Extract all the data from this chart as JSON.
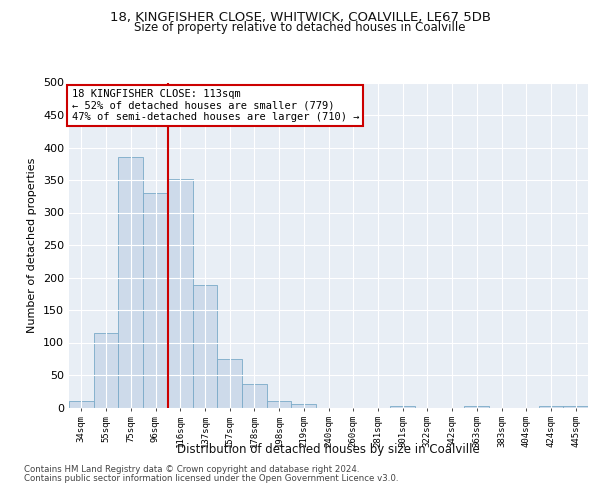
{
  "title1": "18, KINGFISHER CLOSE, WHITWICK, COALVILLE, LE67 5DB",
  "title2": "Size of property relative to detached houses in Coalville",
  "xlabel": "Distribution of detached houses by size in Coalville",
  "ylabel": "Number of detached properties",
  "categories": [
    "34sqm",
    "55sqm",
    "75sqm",
    "96sqm",
    "116sqm",
    "137sqm",
    "157sqm",
    "178sqm",
    "198sqm",
    "219sqm",
    "240sqm",
    "260sqm",
    "281sqm",
    "301sqm",
    "322sqm",
    "342sqm",
    "363sqm",
    "383sqm",
    "404sqm",
    "424sqm",
    "445sqm"
  ],
  "values": [
    10,
    115,
    385,
    330,
    352,
    188,
    74,
    36,
    10,
    6,
    0,
    0,
    0,
    2,
    0,
    0,
    3,
    0,
    0,
    2,
    3
  ],
  "bar_color": "#cddaea",
  "bar_edge_color": "#7aaac8",
  "highlight_line_color": "#cc0000",
  "annotation_text": "18 KINGFISHER CLOSE: 113sqm\n← 52% of detached houses are smaller (779)\n47% of semi-detached houses are larger (710) →",
  "annotation_box_color": "#ffffff",
  "annotation_box_edge": "#cc0000",
  "footnote1": "Contains HM Land Registry data © Crown copyright and database right 2024.",
  "footnote2": "Contains public sector information licensed under the Open Government Licence v3.0.",
  "ylim": [
    0,
    500
  ],
  "plot_bg_color": "#e8eef5",
  "grid_color": "#ffffff",
  "yticks": [
    0,
    50,
    100,
    150,
    200,
    250,
    300,
    350,
    400,
    450,
    500
  ]
}
